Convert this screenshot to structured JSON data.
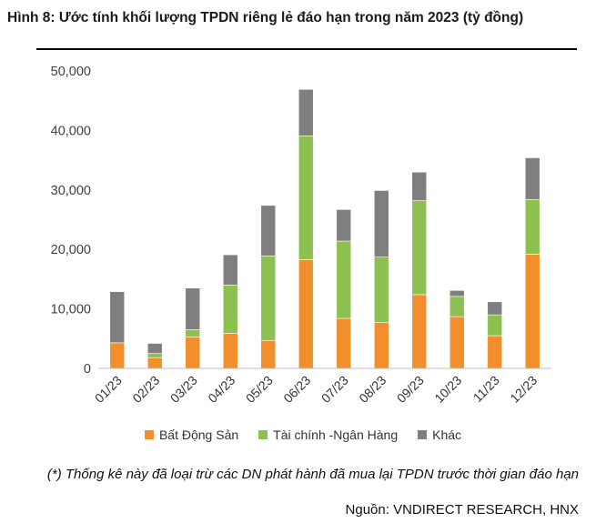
{
  "title": "Hình 8: Ước tính khối lượng TPDN riêng lẻ đáo hạn trong năm 2023 (tỷ đồng)",
  "note": "(*) Thống kê này đã loại trừ các DN phát hành đã mua lại TPDN trước thời gian đáo hạn",
  "source": "Nguồn: VNDIRECT RESEARCH, HNX",
  "colors": {
    "bds": "#F28E2B",
    "tcnh": "#8CC152",
    "khac": "#7F7F7F",
    "rule": "#000000"
  },
  "chart_data": {
    "type": "bar",
    "stacked": true,
    "categories": [
      "01/23",
      "02/23",
      "03/23",
      "04/23",
      "05/23",
      "06/23",
      "07/23",
      "08/23",
      "09/23",
      "10/23",
      "11/23",
      "12/23"
    ],
    "series": [
      {
        "name": "Bất Động Sản",
        "color": "#F28E2B",
        "values": [
          4300,
          1800,
          5300,
          5900,
          4700,
          18300,
          8400,
          7700,
          12400,
          8700,
          5500,
          19200
        ]
      },
      {
        "name": "Tài chính -Ngân Hàng",
        "color": "#8CC152",
        "values": [
          0,
          700,
          1200,
          8100,
          14200,
          20800,
          13000,
          11000,
          15800,
          3400,
          3500,
          9200
        ]
      },
      {
        "name": "Khác",
        "color": "#7F7F7F",
        "values": [
          8600,
          1700,
          7000,
          5100,
          8500,
          7800,
          5300,
          11200,
          4800,
          1000,
          2200,
          7000
        ]
      }
    ],
    "yticks": [
      "0",
      "10,000",
      "20,000",
      "30,000",
      "40,000",
      "50,000"
    ],
    "ylim": [
      0,
      50000
    ],
    "legend_position": "bottom",
    "grid": false
  }
}
